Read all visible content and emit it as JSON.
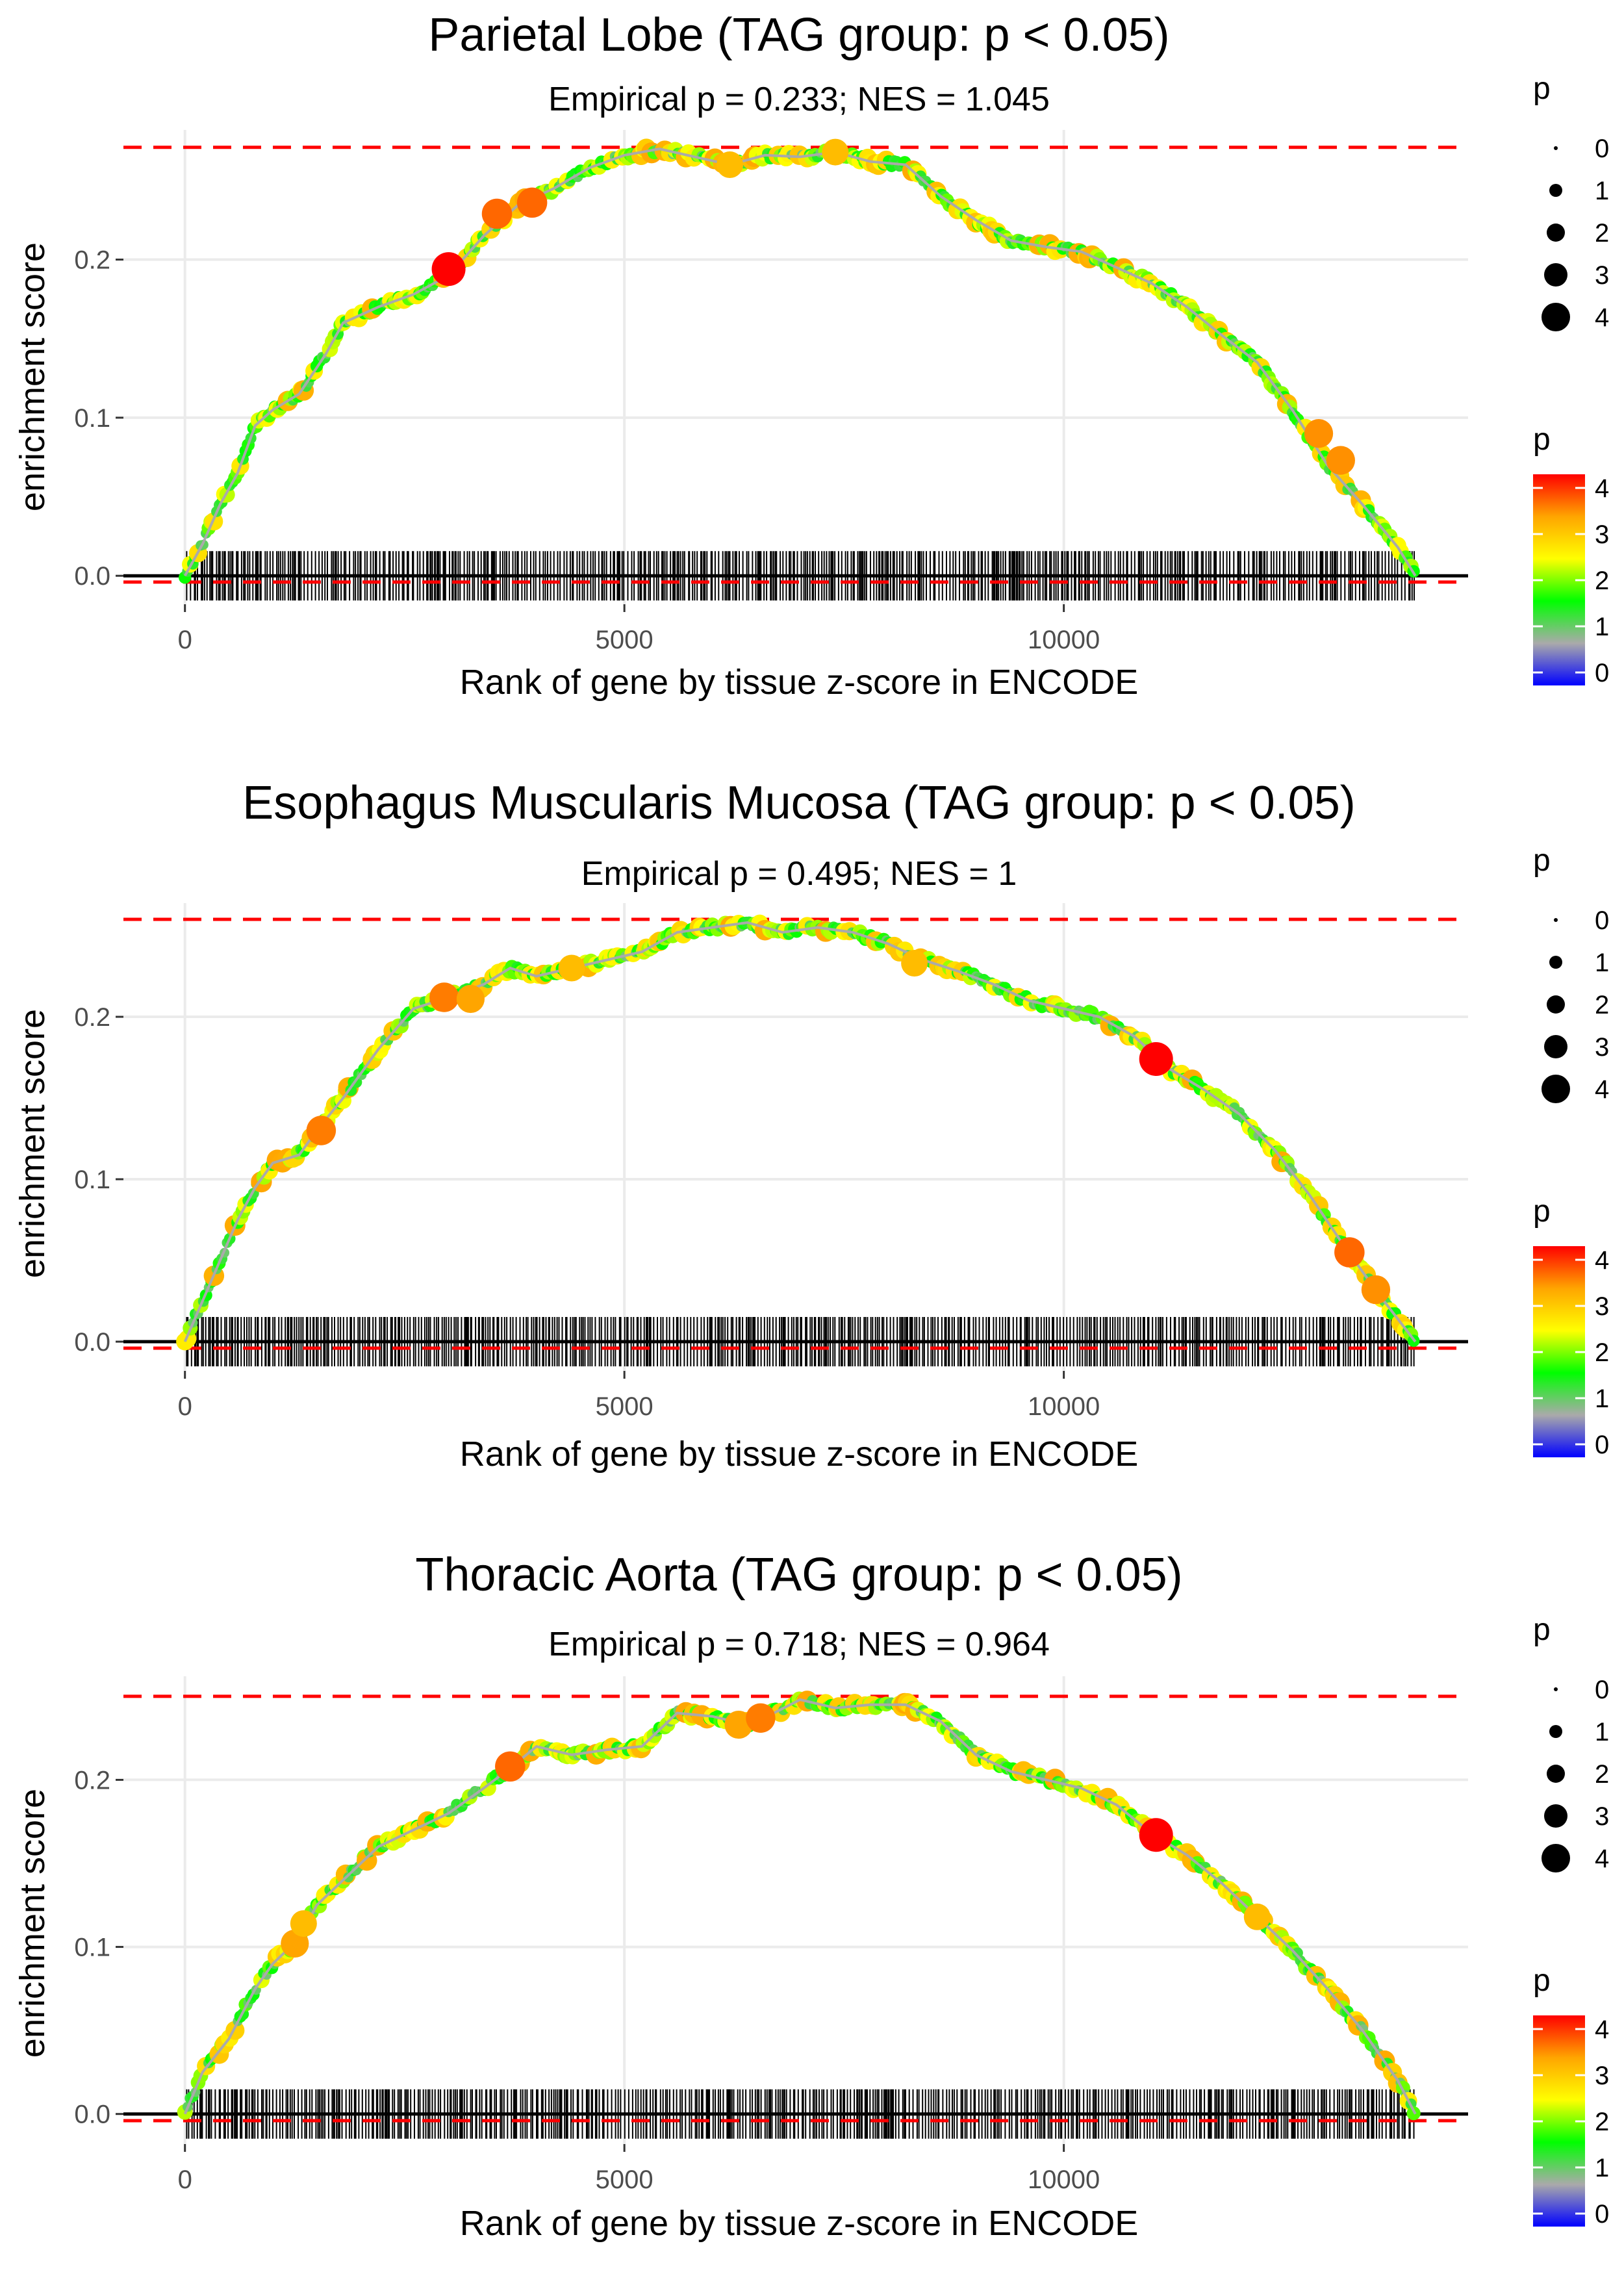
{
  "colors": {
    "threshold_line": "#ff0000",
    "zero_line": "#000000",
    "curve": "#aaaaaa",
    "grid": "#ebebeb",
    "tick_text": "#4d4d4d",
    "gradient": [
      "#0000ff",
      "#aaaaaa",
      "#00ff00",
      "#ffff00",
      "#ffa500",
      "#ff0000"
    ]
  },
  "chart_data": [
    {
      "type": "line",
      "title": "Parietal Lobe (TAG group: p < 0.05)",
      "subtitle": "Empirical p = 0.233; NES = 1.045",
      "xlabel": "Rank of gene by tissue z-score in ENCODE",
      "ylabel": "enrichment score",
      "xlim": [
        -700,
        14600
      ],
      "ylim": [
        -0.018,
        0.282
      ],
      "x_ticks": [
        0,
        5000,
        10000
      ],
      "x_tick_labels": [
        "0",
        "5000",
        "10000"
      ],
      "y_ticks": [
        0.0,
        0.1,
        0.2
      ],
      "y_tick_labels": [
        "0.0",
        "0.1",
        "0.2"
      ],
      "max_es": 0.271,
      "min_es": -0.004,
      "n_genes": 14000,
      "curve": [
        [
          0,
          0
        ],
        [
          200,
          0.02
        ],
        [
          400,
          0.045
        ],
        [
          600,
          0.065
        ],
        [
          800,
          0.095
        ],
        [
          1000,
          0.105
        ],
        [
          1300,
          0.115
        ],
        [
          1600,
          0.14
        ],
        [
          1800,
          0.16
        ],
        [
          2200,
          0.17
        ],
        [
          2600,
          0.178
        ],
        [
          3000,
          0.19
        ],
        [
          3400,
          0.215
        ],
        [
          3800,
          0.235
        ],
        [
          4200,
          0.245
        ],
        [
          4600,
          0.258
        ],
        [
          5000,
          0.266
        ],
        [
          5400,
          0.27
        ],
        [
          5800,
          0.265
        ],
        [
          6200,
          0.26
        ],
        [
          6600,
          0.266
        ],
        [
          7000,
          0.265
        ],
        [
          7400,
          0.268
        ],
        [
          7800,
          0.262
        ],
        [
          8200,
          0.26
        ],
        [
          8600,
          0.24
        ],
        [
          9000,
          0.225
        ],
        [
          9400,
          0.212
        ],
        [
          9800,
          0.208
        ],
        [
          10200,
          0.205
        ],
        [
          10600,
          0.195
        ],
        [
          11000,
          0.185
        ],
        [
          11400,
          0.17
        ],
        [
          11800,
          0.152
        ],
        [
          12200,
          0.135
        ],
        [
          12600,
          0.105
        ],
        [
          13000,
          0.07
        ],
        [
          13400,
          0.045
        ],
        [
          13800,
          0.018
        ],
        [
          14000,
          0.0
        ]
      ],
      "highlight_points": [
        [
          3000,
          0.194,
          4
        ],
        [
          3550,
          0.229,
          3.5
        ],
        [
          3950,
          0.236,
          3.5
        ],
        [
          6200,
          0.26,
          3
        ],
        [
          7400,
          0.268,
          3
        ],
        [
          12900,
          0.09,
          3.3
        ],
        [
          13150,
          0.073,
          3.3
        ]
      ],
      "legend": {
        "size_title": "p",
        "size_labels": [
          "0",
          "1",
          "2",
          "3",
          "4"
        ],
        "color_title": "p",
        "color_labels": [
          "0",
          "1",
          "2",
          "3",
          "4"
        ]
      }
    },
    {
      "type": "line",
      "title": "Esophagus Muscularis Mucosa (TAG group: p < 0.05)",
      "subtitle": "Empirical p = 0.495; NES = 1",
      "xlabel": "Rank of gene by tissue z-score in ENCODE",
      "ylabel": "enrichment score",
      "xlim": [
        -700,
        14600
      ],
      "ylim": [
        -0.018,
        0.27
      ],
      "x_ticks": [
        0,
        5000,
        10000
      ],
      "x_tick_labels": [
        "0",
        "5000",
        "10000"
      ],
      "y_ticks": [
        0.0,
        0.1,
        0.2
      ],
      "y_tick_labels": [
        "0.0",
        "0.1",
        "0.2"
      ],
      "max_es": 0.26,
      "min_es": -0.004,
      "n_genes": 14000,
      "curve": [
        [
          0,
          0
        ],
        [
          200,
          0.025
        ],
        [
          400,
          0.05
        ],
        [
          600,
          0.075
        ],
        [
          800,
          0.095
        ],
        [
          1000,
          0.11
        ],
        [
          1300,
          0.115
        ],
        [
          1500,
          0.13
        ],
        [
          1800,
          0.15
        ],
        [
          2200,
          0.18
        ],
        [
          2600,
          0.205
        ],
        [
          3000,
          0.212
        ],
        [
          3400,
          0.22
        ],
        [
          3700,
          0.23
        ],
        [
          4000,
          0.225
        ],
        [
          4400,
          0.23
        ],
        [
          4800,
          0.235
        ],
        [
          5200,
          0.24
        ],
        [
          5600,
          0.252
        ],
        [
          6000,
          0.255
        ],
        [
          6400,
          0.258
        ],
        [
          6800,
          0.252
        ],
        [
          7200,
          0.255
        ],
        [
          7600,
          0.252
        ],
        [
          8000,
          0.245
        ],
        [
          8400,
          0.235
        ],
        [
          8800,
          0.228
        ],
        [
          9200,
          0.22
        ],
        [
          9600,
          0.21
        ],
        [
          10000,
          0.205
        ],
        [
          10400,
          0.2
        ],
        [
          10800,
          0.188
        ],
        [
          11200,
          0.168
        ],
        [
          11600,
          0.155
        ],
        [
          12000,
          0.14
        ],
        [
          12400,
          0.118
        ],
        [
          12800,
          0.09
        ],
        [
          13200,
          0.058
        ],
        [
          13600,
          0.028
        ],
        [
          14000,
          0.0
        ]
      ],
      "highlight_points": [
        [
          1550,
          0.13,
          3.4
        ],
        [
          2950,
          0.212,
          3.4
        ],
        [
          3250,
          0.211,
          3.2
        ],
        [
          4400,
          0.23,
          3
        ],
        [
          8300,
          0.233,
          3
        ],
        [
          11050,
          0.174,
          4
        ],
        [
          13250,
          0.055,
          3.5
        ],
        [
          13550,
          0.032,
          3.3
        ]
      ],
      "legend": {
        "size_title": "p",
        "size_labels": [
          "0",
          "1",
          "2",
          "3",
          "4"
        ],
        "color_title": "p",
        "color_labels": [
          "0",
          "1",
          "2",
          "3",
          "4"
        ]
      }
    },
    {
      "type": "line",
      "title": "Thoracic Aorta (TAG group: p < 0.05)",
      "subtitle": "Empirical p = 0.718; NES = 0.964",
      "xlabel": "Rank of gene by tissue z-score in ENCODE",
      "ylabel": "enrichment score",
      "xlim": [
        -700,
        14600
      ],
      "ylim": [
        -0.018,
        0.262
      ],
      "x_ticks": [
        0,
        5000,
        10000
      ],
      "x_tick_labels": [
        "0",
        "5000",
        "10000"
      ],
      "y_ticks": [
        0.0,
        0.1,
        0.2
      ],
      "y_tick_labels": [
        "0.0",
        "0.1",
        "0.2"
      ],
      "max_es": 0.25,
      "min_es": -0.004,
      "n_genes": 14000,
      "curve": [
        [
          0,
          0
        ],
        [
          200,
          0.025
        ],
        [
          500,
          0.045
        ],
        [
          800,
          0.075
        ],
        [
          1000,
          0.09
        ],
        [
          1300,
          0.105
        ],
        [
          1500,
          0.125
        ],
        [
          1800,
          0.14
        ],
        [
          2200,
          0.16
        ],
        [
          2600,
          0.17
        ],
        [
          3000,
          0.18
        ],
        [
          3400,
          0.195
        ],
        [
          3700,
          0.207
        ],
        [
          4000,
          0.22
        ],
        [
          4400,
          0.215
        ],
        [
          4800,
          0.218
        ],
        [
          5200,
          0.22
        ],
        [
          5600,
          0.24
        ],
        [
          6000,
          0.238
        ],
        [
          6400,
          0.233
        ],
        [
          6700,
          0.24
        ],
        [
          7000,
          0.248
        ],
        [
          7400,
          0.243
        ],
        [
          7800,
          0.245
        ],
        [
          8200,
          0.245
        ],
        [
          8600,
          0.235
        ],
        [
          9000,
          0.215
        ],
        [
          9400,
          0.205
        ],
        [
          9800,
          0.2
        ],
        [
          10200,
          0.195
        ],
        [
          10600,
          0.185
        ],
        [
          11000,
          0.168
        ],
        [
          11400,
          0.155
        ],
        [
          11800,
          0.138
        ],
        [
          12200,
          0.118
        ],
        [
          12600,
          0.098
        ],
        [
          13000,
          0.075
        ],
        [
          13400,
          0.05
        ],
        [
          13800,
          0.02
        ],
        [
          14000,
          0.0
        ]
      ],
      "highlight_points": [
        [
          1250,
          0.102,
          3.2
        ],
        [
          1350,
          0.114,
          3
        ],
        [
          3700,
          0.208,
          3.5
        ],
        [
          6300,
          0.233,
          3.2
        ],
        [
          6550,
          0.237,
          3.4
        ],
        [
          11050,
          0.167,
          4
        ],
        [
          12200,
          0.118,
          3
        ]
      ],
      "legend": {
        "size_title": "p",
        "size_labels": [
          "0",
          "1",
          "2",
          "3",
          "4"
        ],
        "color_title": "p",
        "color_labels": [
          "0",
          "1",
          "2",
          "3",
          "4"
        ]
      }
    }
  ]
}
